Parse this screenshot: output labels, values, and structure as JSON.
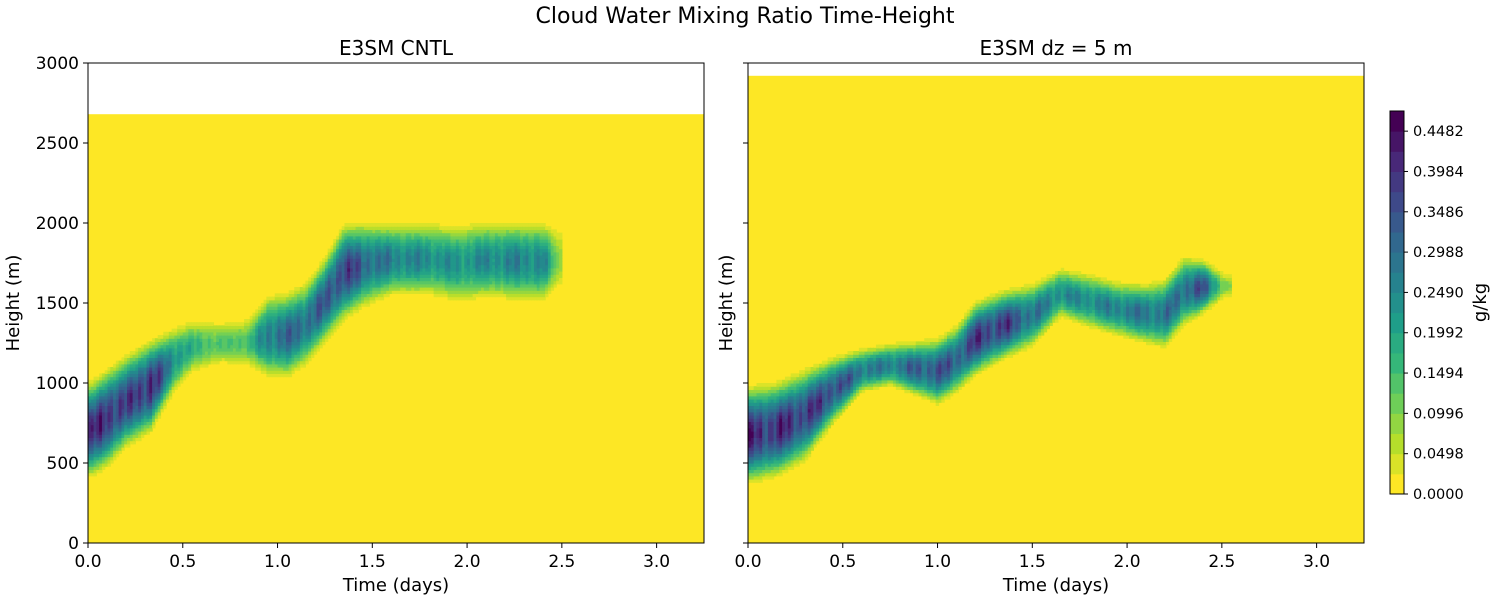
{
  "figure": {
    "suptitle": "Cloud Water Mixing Ratio Time-Height"
  },
  "chart_data": [
    {
      "type": "heatmap",
      "title": "E3SM CNTL",
      "xlabel": "Time (days)",
      "ylabel": "Height (m)",
      "xlim": [
        0.0,
        3.25
      ],
      "ylim": [
        0,
        3000
      ],
      "xticks": [
        0.0,
        0.5,
        1.0,
        1.5,
        2.0,
        2.5,
        3.0
      ],
      "xtick_labels": [
        "0.0",
        "0.5",
        "1.0",
        "1.5",
        "2.0",
        "2.5",
        "3.0"
      ],
      "yticks": [
        0,
        500,
        1000,
        1500,
        2000,
        2500,
        3000
      ],
      "ytick_labels": [
        "0",
        "500",
        "1000",
        "1500",
        "2000",
        "2500",
        "3000"
      ],
      "field_top_m": 2680,
      "cloud_x_end_days": 2.5,
      "cloud_layer": [
        {
          "t": 0.02,
          "base": 420,
          "top": 1010,
          "peak": 0.4
        },
        {
          "t": 0.1,
          "base": 480,
          "top": 1080,
          "peak": 0.44
        },
        {
          "t": 0.2,
          "base": 600,
          "top": 1170,
          "peak": 0.38
        },
        {
          "t": 0.33,
          "base": 700,
          "top": 1260,
          "peak": 0.44
        },
        {
          "t": 0.45,
          "base": 950,
          "top": 1330,
          "peak": 0.26
        },
        {
          "t": 0.55,
          "base": 1080,
          "top": 1380,
          "peak": 0.18
        },
        {
          "t": 0.7,
          "base": 1140,
          "top": 1360,
          "peak": 0.14
        },
        {
          "t": 0.85,
          "base": 1120,
          "top": 1390,
          "peak": 0.16
        },
        {
          "t": 0.95,
          "base": 1050,
          "top": 1540,
          "peak": 0.3
        },
        {
          "t": 1.05,
          "base": 1040,
          "top": 1560,
          "peak": 0.32
        },
        {
          "t": 1.15,
          "base": 1120,
          "top": 1620,
          "peak": 0.32
        },
        {
          "t": 1.25,
          "base": 1260,
          "top": 1780,
          "peak": 0.34
        },
        {
          "t": 1.35,
          "base": 1400,
          "top": 1990,
          "peak": 0.4
        },
        {
          "t": 1.45,
          "base": 1480,
          "top": 2000,
          "peak": 0.34
        },
        {
          "t": 1.6,
          "base": 1560,
          "top": 1990,
          "peak": 0.28
        },
        {
          "t": 1.8,
          "base": 1560,
          "top": 1990,
          "peak": 0.26
        },
        {
          "t": 1.95,
          "base": 1520,
          "top": 1980,
          "peak": 0.24
        },
        {
          "t": 2.1,
          "base": 1540,
          "top": 2000,
          "peak": 0.26
        },
        {
          "t": 2.25,
          "base": 1530,
          "top": 2000,
          "peak": 0.27
        },
        {
          "t": 2.4,
          "base": 1520,
          "top": 2000,
          "peak": 0.27
        },
        {
          "t": 2.48,
          "base": 1600,
          "top": 1950,
          "peak": 0.1
        }
      ]
    },
    {
      "type": "heatmap",
      "title": "E3SM dz = 5 m",
      "xlabel": "Time (days)",
      "ylabel": "Height (m)",
      "xlim": [
        0.0,
        3.25
      ],
      "ylim": [
        0,
        3000
      ],
      "xticks": [
        0.0,
        0.5,
        1.0,
        1.5,
        2.0,
        2.5,
        3.0
      ],
      "xtick_labels": [
        "0.0",
        "0.5",
        "1.0",
        "1.5",
        "2.0",
        "2.5",
        "3.0"
      ],
      "yticks": [
        0,
        500,
        1000,
        1500,
        2000,
        2500,
        3000
      ],
      "ytick_labels": [
        "",
        "",
        "",
        "",
        "",
        "",
        ""
      ],
      "field_top_m": 2920,
      "cloud_x_end_days": 2.55,
      "cloud_layer": [
        {
          "t": 0.02,
          "base": 380,
          "top": 980,
          "peak": 0.42
        },
        {
          "t": 0.15,
          "base": 420,
          "top": 1000,
          "peak": 0.42
        },
        {
          "t": 0.3,
          "base": 520,
          "top": 1080,
          "peak": 0.4
        },
        {
          "t": 0.45,
          "base": 760,
          "top": 1150,
          "peak": 0.38
        },
        {
          "t": 0.6,
          "base": 960,
          "top": 1200,
          "peak": 0.3
        },
        {
          "t": 0.75,
          "base": 1000,
          "top": 1230,
          "peak": 0.28
        },
        {
          "t": 0.9,
          "base": 930,
          "top": 1250,
          "peak": 0.34
        },
        {
          "t": 1.0,
          "base": 880,
          "top": 1270,
          "peak": 0.36
        },
        {
          "t": 1.1,
          "base": 950,
          "top": 1350,
          "peak": 0.34
        },
        {
          "t": 1.2,
          "base": 1060,
          "top": 1500,
          "peak": 0.4
        },
        {
          "t": 1.35,
          "base": 1160,
          "top": 1570,
          "peak": 0.4
        },
        {
          "t": 1.5,
          "base": 1240,
          "top": 1610,
          "peak": 0.3
        },
        {
          "t": 1.65,
          "base": 1430,
          "top": 1700,
          "peak": 0.26
        },
        {
          "t": 1.8,
          "base": 1360,
          "top": 1670,
          "peak": 0.26
        },
        {
          "t": 1.95,
          "base": 1310,
          "top": 1620,
          "peak": 0.28
        },
        {
          "t": 2.1,
          "base": 1260,
          "top": 1610,
          "peak": 0.3
        },
        {
          "t": 2.2,
          "base": 1230,
          "top": 1640,
          "peak": 0.3
        },
        {
          "t": 2.3,
          "base": 1370,
          "top": 1780,
          "peak": 0.32
        },
        {
          "t": 2.4,
          "base": 1450,
          "top": 1760,
          "peak": 0.36
        },
        {
          "t": 2.52,
          "base": 1560,
          "top": 1660,
          "peak": 0.1
        }
      ]
    }
  ],
  "colorbar": {
    "label": "g/kg",
    "vmin": 0.0,
    "vmax": 0.4731,
    "levels": 19,
    "ticks": [
      0.0,
      0.0498,
      0.0996,
      0.1494,
      0.1992,
      0.249,
      0.2988,
      0.3486,
      0.3984,
      0.4482
    ],
    "tick_labels": [
      "0.0000",
      "0.0498",
      "0.0996",
      "0.1494",
      "0.1992",
      "0.2490",
      "0.2988",
      "0.3486",
      "0.3984",
      "0.4482"
    ],
    "colormap_stops": [
      "#fde725",
      "#b5de2b",
      "#6ece58",
      "#35b779",
      "#1f9e89",
      "#26828e",
      "#31688e",
      "#3e4989",
      "#482878",
      "#440154"
    ]
  }
}
